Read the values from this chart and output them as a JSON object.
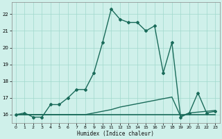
{
  "xlabel": "Humidex (Indice chaleur)",
  "xlim": [
    -0.5,
    23.5
  ],
  "ylim": [
    15.5,
    22.7
  ],
  "yticks": [
    16,
    17,
    18,
    19,
    20,
    21,
    22
  ],
  "xticks": [
    0,
    1,
    2,
    3,
    4,
    5,
    6,
    7,
    8,
    9,
    10,
    11,
    12,
    13,
    14,
    15,
    16,
    17,
    18,
    19,
    20,
    21,
    22,
    23
  ],
  "bg_color": "#cff0ea",
  "grid_color": "#a0d8cc",
  "line_color": "#1a6b5a",
  "line1_x": [
    0,
    1,
    2,
    3,
    4,
    5,
    6,
    7,
    8,
    9,
    10,
    11,
    12,
    13,
    14,
    15,
    16,
    17,
    18,
    19,
    20,
    21,
    22,
    23
  ],
  "line1_y": [
    16.0,
    16.1,
    15.85,
    15.85,
    16.6,
    16.6,
    17.0,
    17.5,
    17.5,
    18.5,
    20.3,
    22.3,
    21.7,
    21.5,
    21.5,
    21.0,
    21.3,
    18.5,
    20.3,
    15.85,
    16.1,
    17.3,
    16.1,
    16.2
  ],
  "line2_x": [
    0,
    1,
    2,
    3,
    4,
    5,
    6,
    7,
    8,
    9,
    10,
    11,
    12,
    13,
    14,
    15,
    16,
    17,
    18,
    19,
    20,
    21,
    22,
    23
  ],
  "line2_y": [
    16.0,
    16.0,
    16.0,
    16.0,
    16.0,
    16.0,
    16.0,
    16.0,
    16.0,
    16.1,
    16.2,
    16.3,
    16.45,
    16.55,
    16.65,
    16.75,
    16.85,
    16.95,
    17.05,
    15.9,
    16.1,
    16.15,
    16.2,
    16.25
  ],
  "line3_x": [
    0,
    23
  ],
  "line3_y": [
    16.0,
    16.0
  ]
}
